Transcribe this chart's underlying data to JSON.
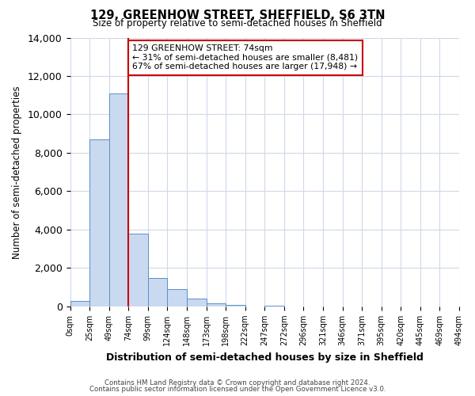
{
  "title": "129, GREENHOW STREET, SHEFFIELD, S6 3TN",
  "subtitle": "Size of property relative to semi-detached houses in Sheffield",
  "xlabel": "Distribution of semi-detached houses by size in Sheffield",
  "ylabel": "Number of semi-detached properties",
  "bin_labels": [
    "0sqm",
    "25sqm",
    "49sqm",
    "74sqm",
    "99sqm",
    "124sqm",
    "148sqm",
    "173sqm",
    "198sqm",
    "222sqm",
    "247sqm",
    "272sqm",
    "296sqm",
    "321sqm",
    "346sqm",
    "371sqm",
    "395sqm",
    "420sqm",
    "445sqm",
    "469sqm",
    "494sqm"
  ],
  "bin_values": [
    300,
    8700,
    11100,
    3800,
    1500,
    900,
    400,
    150,
    100,
    0,
    50,
    0,
    0,
    0,
    0,
    0,
    0,
    0,
    0,
    0
  ],
  "property_line_x": 3,
  "property_sqm": 74,
  "annotation_title": "129 GREENHOW STREET: 74sqm",
  "annotation_line1": "← 31% of semi-detached houses are smaller (8,481)",
  "annotation_line2": "67% of semi-detached houses are larger (17,948) →",
  "bar_color": "#c9d9f0",
  "bar_edge_color": "#5b8fc9",
  "line_color": "#cc0000",
  "annotation_box_edge": "#cc0000",
  "ylim": [
    0,
    14000
  ],
  "yticks": [
    0,
    2000,
    4000,
    6000,
    8000,
    10000,
    12000,
    14000
  ],
  "grid_color": "#d0d8e8",
  "footer1": "Contains HM Land Registry data © Crown copyright and database right 2024.",
  "footer2": "Contains public sector information licensed under the Open Government Licence v3.0."
}
